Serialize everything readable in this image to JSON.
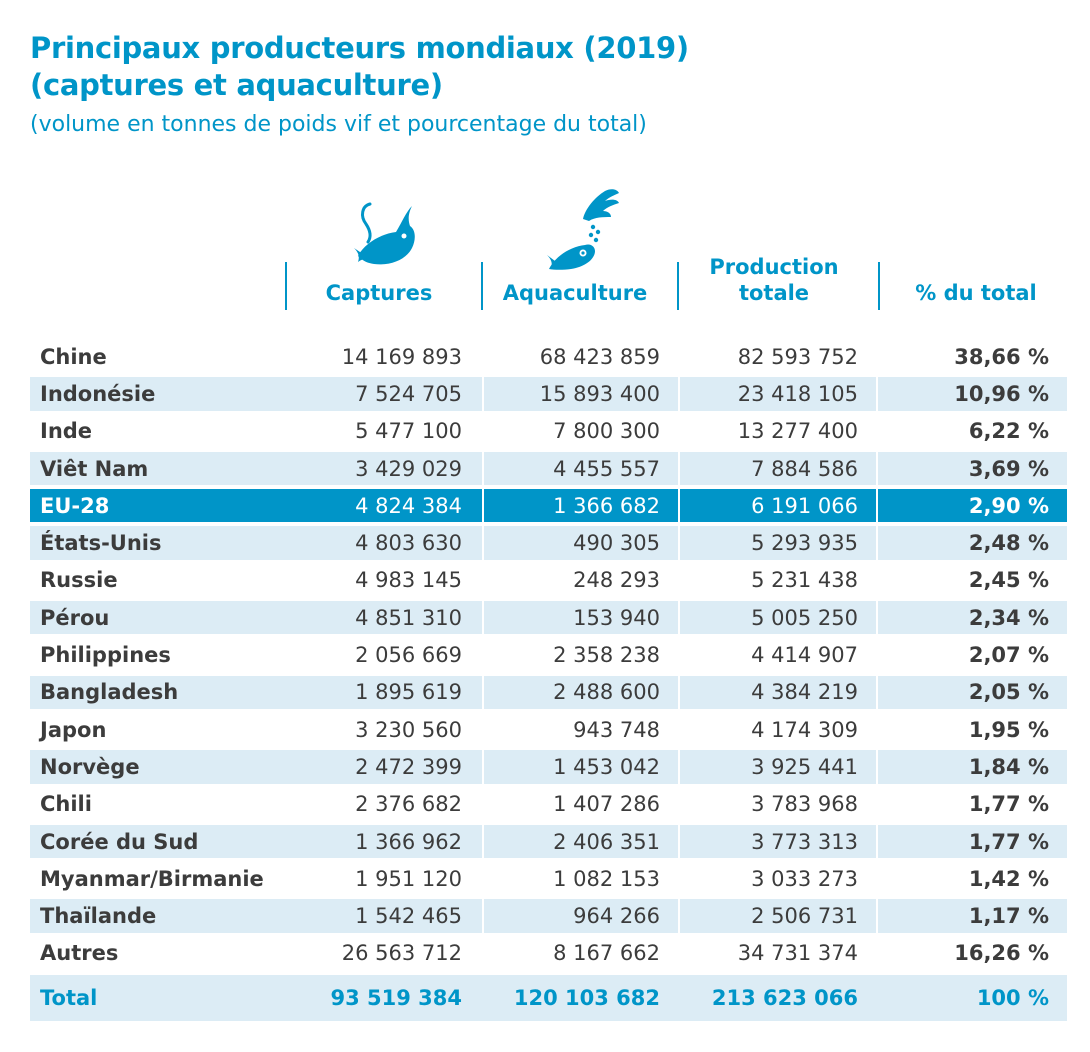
{
  "title": {
    "line1": "Principaux producteurs mondiaux (2019)",
    "line2": "(captures et aquaculture)",
    "subtitle": "(volume en tonnes de poids vif et pourcentage du total)"
  },
  "icons": {
    "captures": "fish-hook-icon",
    "aquaculture": "fish-feeding-hand-icon"
  },
  "colors": {
    "accent": "#0095c8",
    "row_shade": "#dcecf5",
    "highlight": "#0095c8"
  },
  "columns": {
    "captures": "Captures",
    "aquaculture": "Aquaculture",
    "total_line1": "Production",
    "total_line2": "totale",
    "pct": "% du total"
  },
  "rows": [
    {
      "country": "Chine",
      "captures": "14 169 893",
      "aquaculture": "68 423 859",
      "total": "82 593 752",
      "pct": "38,66 %"
    },
    {
      "country": "Indonésie",
      "captures": "7 524 705",
      "aquaculture": "15 893 400",
      "total": "23 418 105",
      "pct": "10,96 %"
    },
    {
      "country": "Inde",
      "captures": "5 477 100",
      "aquaculture": "7 800 300",
      "total": "13 277 400",
      "pct": "6,22 %"
    },
    {
      "country": "Viêt Nam",
      "captures": "3 429 029",
      "aquaculture": "4 455 557",
      "total": "7 884 586",
      "pct": "3,69 %"
    },
    {
      "country": "EU-28",
      "captures": "4 824 384",
      "aquaculture": "1 366 682",
      "total": "6 191 066",
      "pct": "2,90 %"
    },
    {
      "country": "États-Unis",
      "captures": "4 803 630",
      "aquaculture": "490 305",
      "total": "5 293 935",
      "pct": "2,48 %"
    },
    {
      "country": "Russie",
      "captures": "4 983 145",
      "aquaculture": "248 293",
      "total": "5 231 438",
      "pct": "2,45 %"
    },
    {
      "country": "Pérou",
      "captures": "4 851 310",
      "aquaculture": "153 940",
      "total": "5 005 250",
      "pct": "2,34 %"
    },
    {
      "country": "Philippines",
      "captures": "2 056 669",
      "aquaculture": "2 358 238",
      "total": "4 414 907",
      "pct": "2,07 %"
    },
    {
      "country": "Bangladesh",
      "captures": "1 895 619",
      "aquaculture": "2 488 600",
      "total": "4 384 219",
      "pct": "2,05 %"
    },
    {
      "country": "Japon",
      "captures": "3 230 560",
      "aquaculture": "943 748",
      "total": "4 174 309",
      "pct": "1,95 %"
    },
    {
      "country": "Norvège",
      "captures": "2 472 399",
      "aquaculture": "1 453 042",
      "total": "3 925 441",
      "pct": "1,84 %"
    },
    {
      "country": "Chili",
      "captures": "2 376 682",
      "aquaculture": "1 407 286",
      "total": "3 783 968",
      "pct": "1,77 %"
    },
    {
      "country": "Corée du Sud",
      "captures": "1 366 962",
      "aquaculture": "2 406 351",
      "total": "3 773 313",
      "pct": "1,77 %"
    },
    {
      "country": "Myanmar/Birmanie",
      "captures": "1 951 120",
      "aquaculture": "1 082 153",
      "total": "3 033 273",
      "pct": "1,42 %"
    },
    {
      "country": "Thaïlande",
      "captures": "1 542 465",
      "aquaculture": "964 266",
      "total": "2 506 731",
      "pct": "1,17 %"
    },
    {
      "country": "Autres",
      "captures": "26 563 712",
      "aquaculture": "8 167 662",
      "total": "34 731 374",
      "pct": "16,26 %"
    }
  ],
  "total_row": {
    "country": "Total",
    "captures": "93 519 384",
    "aquaculture": "120 103 682",
    "total": "213 623 066",
    "pct": "100 %"
  },
  "highlight_row": "EU-28"
}
